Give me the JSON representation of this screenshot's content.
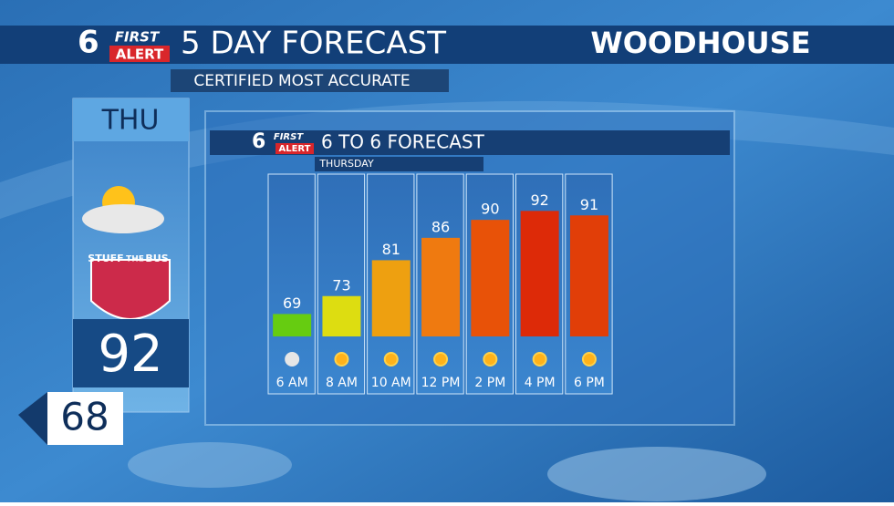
{
  "header": {
    "logo_number": "6",
    "logo_first": "FIRST",
    "logo_alert": "ALERT",
    "title": "5 DAY FORECAST",
    "sponsor": "WOODHOUSE",
    "subtitle": "CERTIFIED MOST ACCURATE"
  },
  "day_panel": {
    "day": "THU",
    "badge": {
      "line1": "STUFF",
      "line2": "THE",
      "line3": "BUS"
    },
    "high": "92",
    "low": "68"
  },
  "chart_data": {
    "type": "bar",
    "logo_number": "6",
    "logo_first": "FIRST",
    "logo_alert": "ALERT",
    "title": "6 TO 6 FORECAST",
    "subtitle": "THURSDAY",
    "categories": [
      "6 AM",
      "8 AM",
      "10 AM",
      "12 PM",
      "2 PM",
      "4 PM",
      "6 PM"
    ],
    "values": [
      69,
      73,
      81,
      86,
      90,
      92,
      91
    ],
    "colors": [
      "#66cc11",
      "#dddd11",
      "#eea010",
      "#ef7a10",
      "#e85208",
      "#dd2a08",
      "#e13e08"
    ],
    "ylim": [
      64,
      100
    ]
  }
}
